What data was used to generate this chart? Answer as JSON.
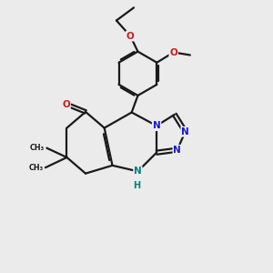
{
  "bg_color": "#ebebeb",
  "bond_color": "#1a1a1a",
  "N_color": "#1a1acc",
  "O_color": "#cc1a1a",
  "NH_color": "#008080",
  "line_width": 1.6,
  "figsize": [
    3.0,
    3.0
  ],
  "dpi": 100,
  "xlim": [
    0,
    10
  ],
  "ylim": [
    0,
    10
  ]
}
